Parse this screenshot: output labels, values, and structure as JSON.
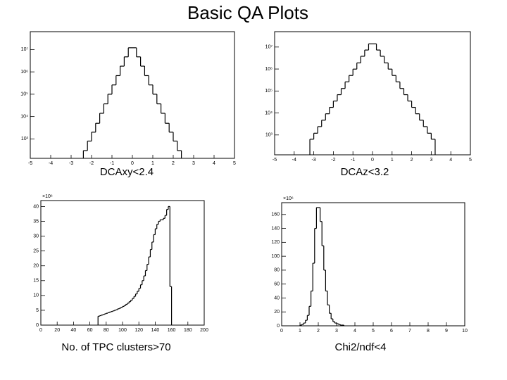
{
  "title": "Basic QA Plots",
  "chart_data": [
    {
      "type": "histogram",
      "caption": "DCAxy<2.4",
      "log_y": true,
      "bins": [
        -2.4,
        -2.2,
        -2.0,
        -1.8,
        -1.6,
        -1.4,
        -1.2,
        -1.0,
        -0.8,
        -0.6,
        -0.4,
        -0.2,
        0,
        0.2,
        0.4,
        0.6,
        0.8,
        1.0,
        1.2,
        1.4,
        1.6,
        1.8,
        2.0,
        2.2,
        2.4
      ],
      "values": [
        300,
        800,
        2000,
        5000,
        14000,
        37000,
        100000,
        260000,
        680000,
        1800000,
        4700000,
        12000000,
        12000000,
        4700000,
        1800000,
        680000,
        260000,
        100000,
        37000,
        14000,
        5000,
        2000,
        800,
        300
      ],
      "xlim": [
        -5,
        5
      ],
      "xticks": [
        -5,
        -4,
        -3,
        -2,
        -1,
        0,
        1,
        2,
        3,
        4,
        5
      ],
      "ylim": [
        135,
        63000000
      ],
      "yticks": [
        {
          "value": 1000,
          "label": "10³"
        },
        {
          "value": 10000,
          "label": "10⁴"
        },
        {
          "value": 100000,
          "label": "10⁵"
        },
        {
          "value": 1000000,
          "label": "10⁶"
        },
        {
          "value": 10000000,
          "label": "10⁷"
        }
      ]
    },
    {
      "type": "histogram",
      "caption": "DCAz<3.2",
      "log_y": true,
      "bins": [
        -3.2,
        -3.0,
        -2.8,
        -2.6,
        -2.4,
        -2.2,
        -2.0,
        -1.8,
        -1.6,
        -1.4,
        -1.2,
        -1.0,
        -0.8,
        -0.6,
        -0.4,
        -0.2,
        0,
        0.2,
        0.4,
        0.6,
        0.8,
        1.0,
        1.2,
        1.4,
        1.6,
        1.8,
        2.0,
        2.2,
        2.4,
        2.6,
        2.8,
        3.0,
        3.2
      ],
      "values": [
        640,
        1200,
        2400,
        4700,
        9200,
        18000,
        35000,
        68000,
        130000,
        260000,
        510000,
        990000,
        1900000,
        3800000,
        7300000,
        14000000,
        14000000,
        7300000,
        3800000,
        1900000,
        990000,
        510000,
        260000,
        130000,
        68000,
        35000,
        18000,
        9200,
        4700,
        2400,
        1200,
        640
      ],
      "xlim": [
        -5,
        5
      ],
      "xticks": [
        -5,
        -4,
        -3,
        -2,
        -1,
        0,
        1,
        2,
        3,
        4,
        5
      ],
      "ylim": [
        125,
        50000000
      ],
      "yticks": [
        {
          "value": 1000,
          "label": "10³"
        },
        {
          "value": 10000,
          "label": "10⁴"
        },
        {
          "value": 100000,
          "label": "10⁵"
        },
        {
          "value": 1000000,
          "label": "10⁶"
        },
        {
          "value": 10000000,
          "label": "10⁷"
        }
      ]
    },
    {
      "type": "histogram",
      "caption": "No. of TPC clusters>70",
      "log_y": false,
      "yfactor": "×10⁶",
      "bins": [
        70,
        72,
        74,
        76,
        78,
        80,
        82,
        84,
        86,
        88,
        90,
        92,
        94,
        96,
        98,
        100,
        102,
        104,
        106,
        108,
        110,
        112,
        114,
        116,
        118,
        120,
        122,
        124,
        126,
        128,
        130,
        132,
        134,
        136,
        138,
        140,
        142,
        144,
        146,
        148,
        150,
        152,
        154,
        156,
        158,
        160
      ],
      "values": [
        3,
        3.2,
        3.4,
        3.6,
        3.8,
        4.0,
        4.2,
        4.4,
        4.6,
        4.8,
        5.0,
        5.2,
        5.5,
        5.7,
        6.0,
        6.3,
        6.6,
        7.0,
        7.4,
        7.9,
        8.4,
        9.0,
        9.7,
        10.5,
        11.4,
        12.4,
        13.6,
        15,
        16.6,
        18.4,
        20.5,
        23,
        25.5,
        28,
        30.5,
        32.5,
        34,
        35,
        35.5,
        35.5,
        36,
        37,
        39,
        40,
        13
      ],
      "xlim": [
        0,
        200
      ],
      "xticks": [
        0,
        20,
        40,
        60,
        80,
        100,
        120,
        140,
        160,
        180,
        200
      ],
      "ylim": [
        0,
        42
      ],
      "yticks": [
        0,
        5,
        10,
        15,
        20,
        25,
        30,
        35,
        40
      ]
    },
    {
      "type": "histogram",
      "caption": "Chi2/ndf<4",
      "log_y": false,
      "yfactor": "×10⁶",
      "bins": [
        1.0,
        1.1,
        1.2,
        1.3,
        1.4,
        1.5,
        1.6,
        1.7,
        1.8,
        1.9,
        2.0,
        2.1,
        2.2,
        2.3,
        2.4,
        2.5,
        2.6,
        2.7,
        2.8,
        2.9,
        3.0,
        3.1,
        3.2,
        3.3,
        3.4
      ],
      "values": [
        1,
        2,
        4,
        8,
        15,
        28,
        50,
        90,
        140,
        170,
        170,
        150,
        115,
        80,
        50,
        30,
        18,
        10,
        6,
        4,
        3,
        2,
        1,
        1
      ],
      "xlim": [
        0,
        10
      ],
      "xticks": [
        0,
        1,
        2,
        3,
        4,
        5,
        6,
        7,
        8,
        9,
        10
      ],
      "ylim": [
        0,
        177
      ],
      "yticks": [
        0,
        20,
        40,
        60,
        80,
        100,
        120,
        140,
        160
      ]
    }
  ]
}
